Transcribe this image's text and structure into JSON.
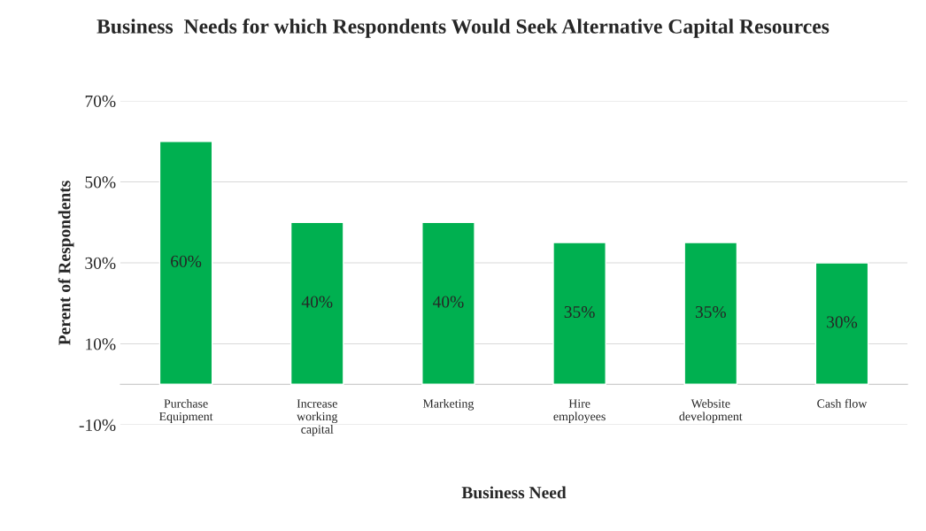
{
  "chart_data": {
    "type": "bar",
    "title": "Business  Needs for which Respondents Would Seek Alternative Capital Resources",
    "xlabel": "Business Need",
    "ylabel": "Perent of Respondents",
    "categories": [
      "Purchase Equipment",
      "Increase working capital",
      "Marketing",
      "Hire employees",
      "Website development",
      "Cash flow"
    ],
    "values": [
      60,
      40,
      40,
      35,
      35,
      30
    ],
    "value_labels": [
      "60%",
      "40%",
      "40%",
      "35%",
      "35%",
      "30%"
    ],
    "color": "#00b050",
    "ylim": [
      -10,
      70
    ],
    "yticks": [
      {
        "value": -10,
        "label": "-10%"
      },
      {
        "value": 10,
        "label": "10%"
      },
      {
        "value": 30,
        "label": "30%"
      },
      {
        "value": 50,
        "label": "50%"
      },
      {
        "value": 70,
        "label": "70%"
      }
    ],
    "grid": "y",
    "legend": false
  }
}
